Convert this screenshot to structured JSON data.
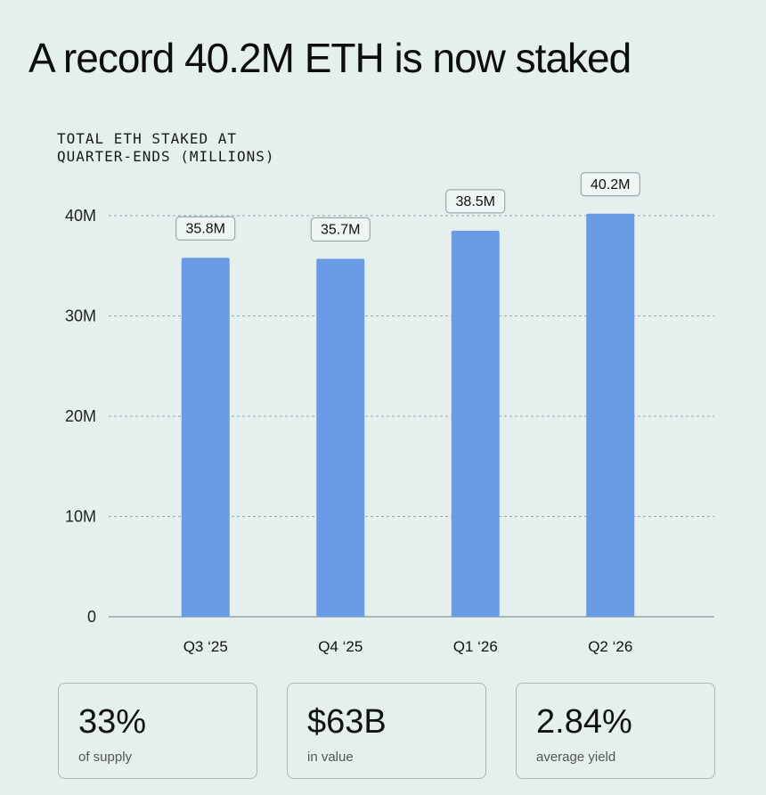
{
  "title": "A record 40.2M ETH is now staked",
  "chart_data": {
    "type": "bar",
    "title": "TOTAL ETH STAKED AT\nQUARTER-ENDS (MILLIONS)",
    "categories": [
      "Q3 ‘25",
      "Q4 ‘25",
      "Q1 ‘26",
      "Q2 ‘26"
    ],
    "values": [
      35.8,
      35.7,
      38.5,
      40.2
    ],
    "value_labels": [
      "35.8M",
      "35.7M",
      "38.5M",
      "40.2M"
    ],
    "yticks": [
      0,
      10,
      20,
      30,
      40
    ],
    "ytick_labels": [
      "0",
      "10M",
      "20M",
      "30M",
      "40M"
    ],
    "ylim": [
      0,
      40
    ],
    "grid": true,
    "bar_color": "#6a9be6"
  },
  "stats": [
    {
      "value": "33%",
      "label": "of supply"
    },
    {
      "value": "$63B",
      "label": "in value"
    },
    {
      "value": "2.84%",
      "label": "average yield"
    }
  ]
}
